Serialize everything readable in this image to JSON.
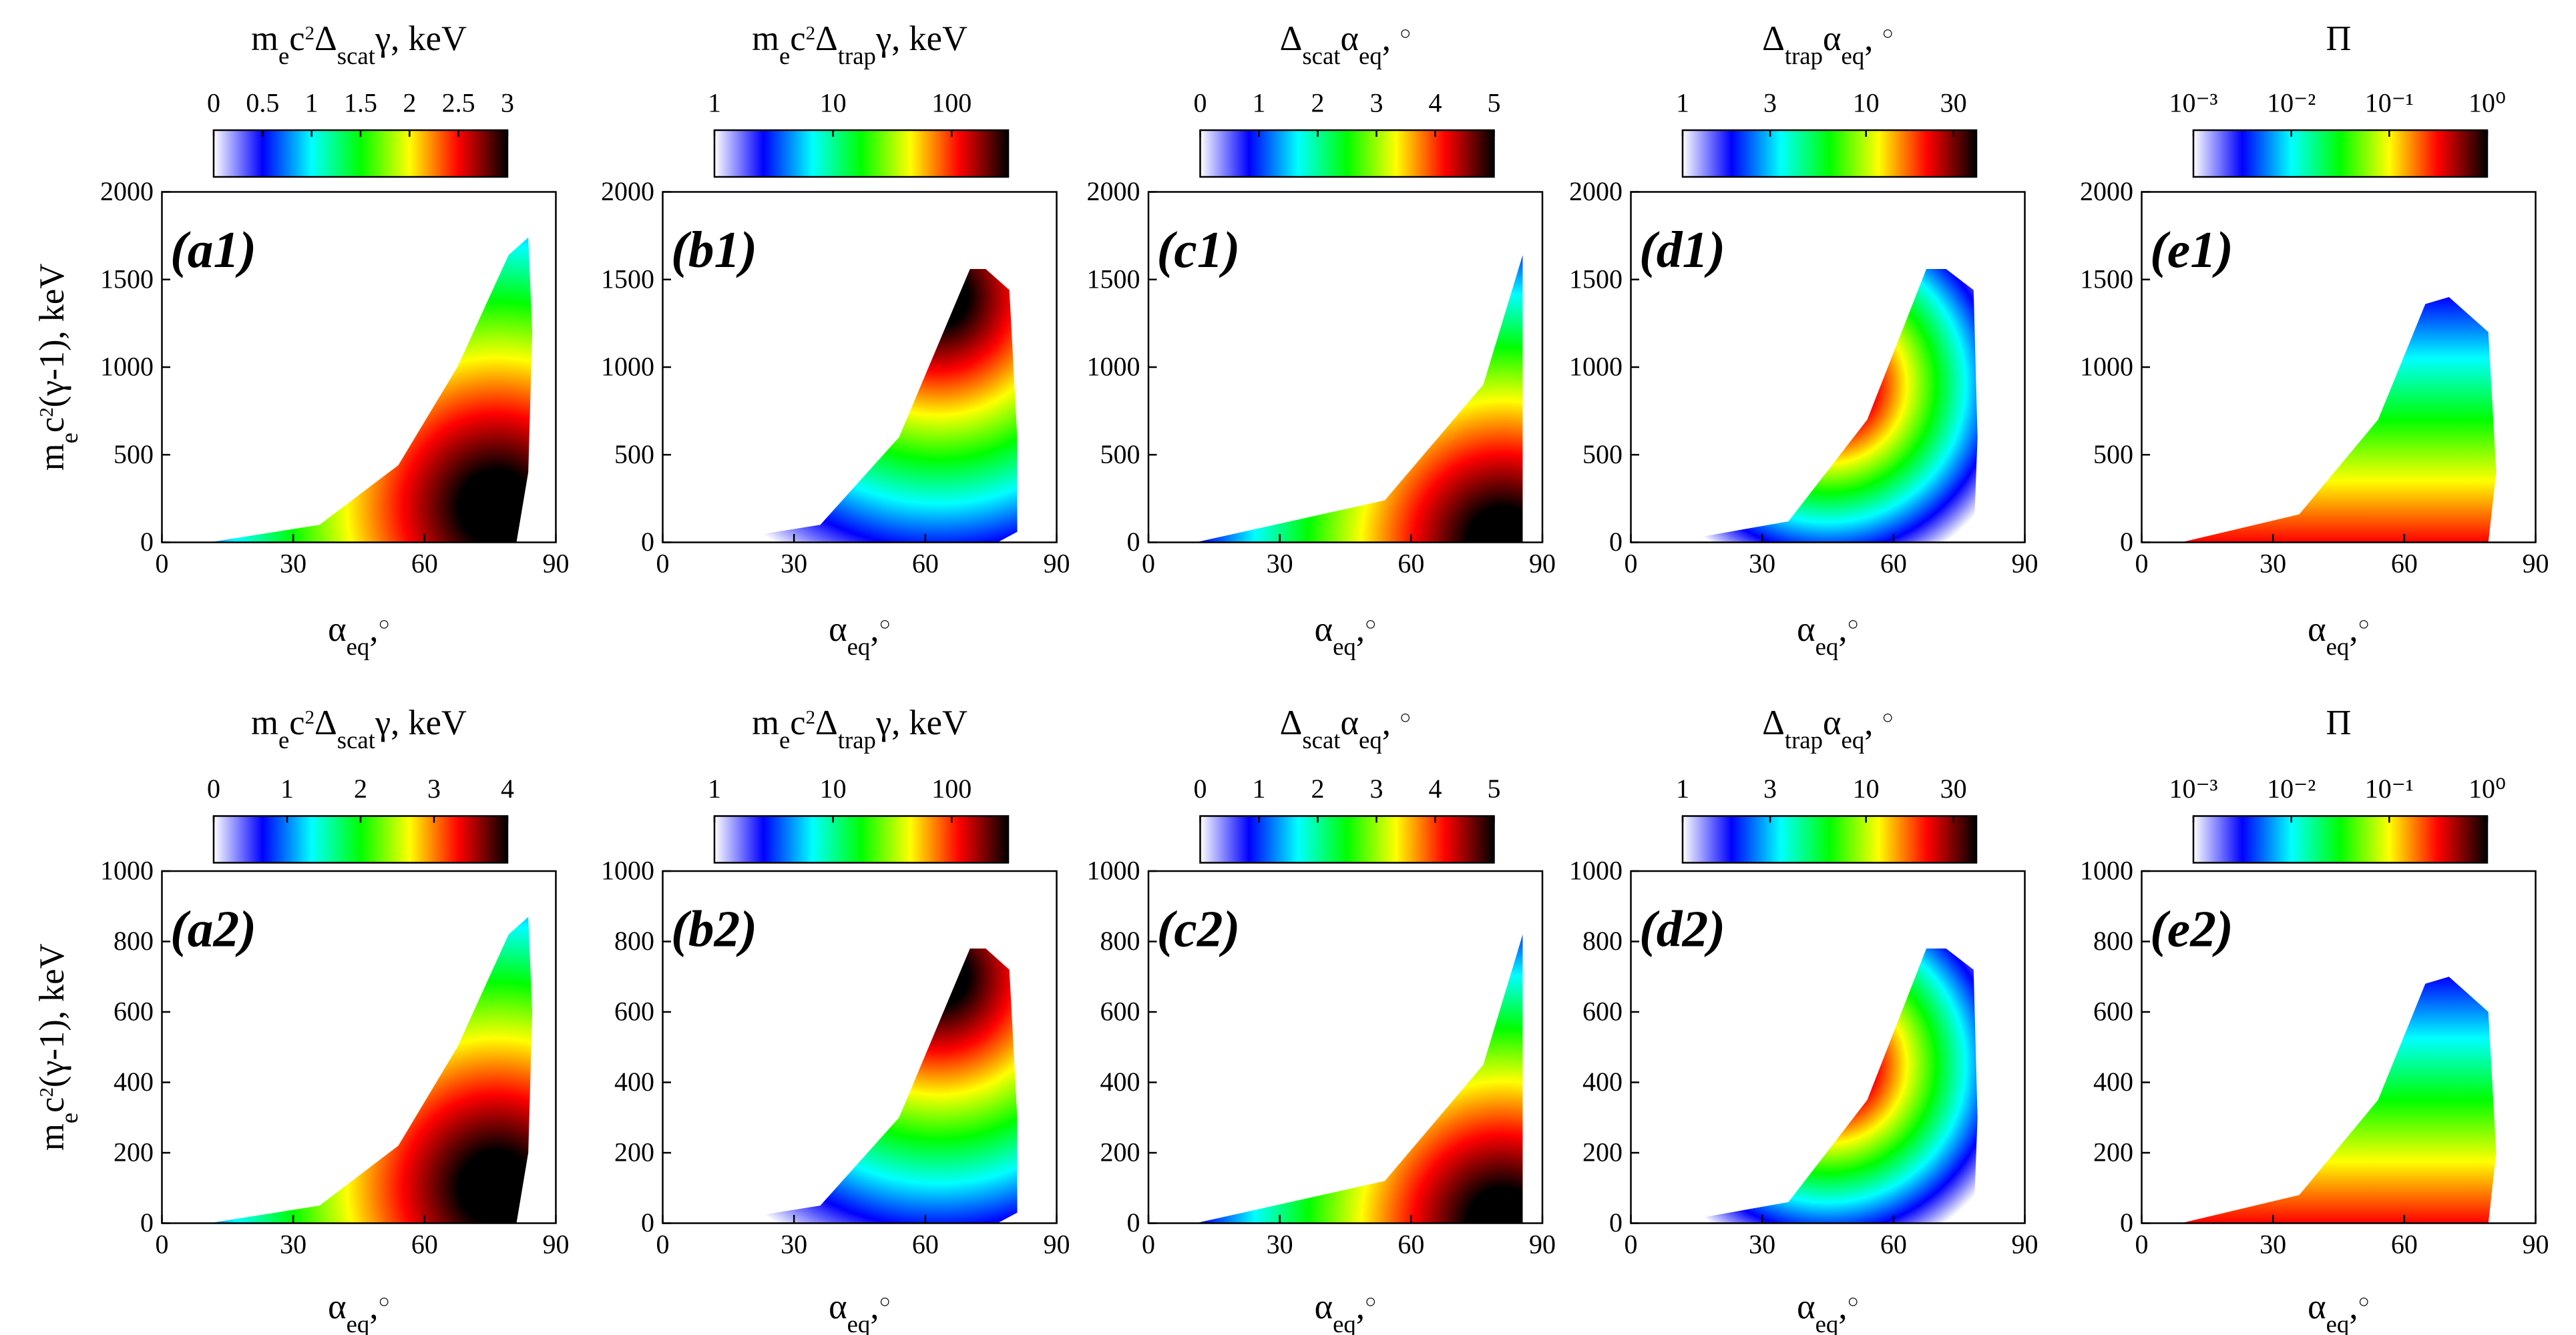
{
  "chart_data": [
    {
      "type": "heatmap",
      "panel_label": "(a1)",
      "colorbar_title": [
        {
          "text": "m"
        },
        {
          "text": "e",
          "shift": "sub"
        },
        {
          "text": "c"
        },
        {
          "text": "2",
          "shift": "super"
        },
        {
          "text": "Δ"
        },
        {
          "text": "scat",
          "shift": "sub"
        },
        {
          "text": "γ, keV"
        }
      ],
      "clim": [
        0,
        3
      ],
      "cticks": [
        0,
        0.5,
        1,
        1.5,
        2,
        2.5,
        3
      ],
      "cscale": "linear",
      "colormap": [
        "#ffffff",
        "#0000ff",
        "#00ffff",
        "#00ff00",
        "#ffff00",
        "#ff0000",
        "#000000"
      ],
      "xlabel": [
        {
          "text": "α"
        },
        {
          "text": "eq",
          "shift": "sub"
        },
        {
          "text": ","
        },
        {
          "text": "○",
          "shift": "super"
        }
      ],
      "ylabel": [
        {
          "text": "m"
        },
        {
          "text": "e",
          "shift": "sub"
        },
        {
          "text": "c"
        },
        {
          "text": "2",
          "shift": "super"
        },
        {
          "text": "(γ-1), keV"
        }
      ],
      "xlim": [
        0,
        90
      ],
      "xticks": [
        0,
        30,
        60,
        90
      ],
      "ylim": [
        0,
        2000
      ],
      "yticks": [
        0,
        500,
        1000,
        1500,
        2000
      ]
    },
    {
      "type": "heatmap",
      "panel_label": "(b1)",
      "colorbar_title": [
        {
          "text": "m"
        },
        {
          "text": "e",
          "shift": "sub"
        },
        {
          "text": "c"
        },
        {
          "text": "2",
          "shift": "super"
        },
        {
          "text": "Δ"
        },
        {
          "text": "trap",
          "shift": "sub"
        },
        {
          "text": "γ, keV"
        }
      ],
      "clim": [
        1,
        300
      ],
      "cticks": [
        1,
        10,
        100
      ],
      "cscale": "log",
      "colormap": [
        "#ffffff",
        "#0000ff",
        "#00ffff",
        "#00ff00",
        "#ffff00",
        "#ff0000",
        "#000000"
      ],
      "xlabel": [
        {
          "text": "α"
        },
        {
          "text": "eq",
          "shift": "sub"
        },
        {
          "text": ","
        },
        {
          "text": "○",
          "shift": "super"
        }
      ],
      "xlim": [
        0,
        90
      ],
      "xticks": [
        0,
        30,
        60,
        90
      ],
      "ylim": [
        0,
        2000
      ],
      "yticks": [
        0,
        500,
        1000,
        1500,
        2000
      ]
    },
    {
      "type": "heatmap",
      "panel_label": "(c1)",
      "colorbar_title": [
        {
          "text": "Δ"
        },
        {
          "text": "scat",
          "shift": "sub"
        },
        {
          "text": "α"
        },
        {
          "text": "eq",
          "shift": "sub"
        },
        {
          "text": ", "
        },
        {
          "text": "○",
          "shift": "super"
        }
      ],
      "clim": [
        0,
        5
      ],
      "cticks": [
        0,
        1,
        2,
        3,
        4,
        5
      ],
      "cscale": "linear",
      "colormap": [
        "#ffffff",
        "#0000ff",
        "#00ffff",
        "#00ff00",
        "#ffff00",
        "#ff0000",
        "#000000"
      ],
      "xlabel": [
        {
          "text": "α"
        },
        {
          "text": "eq",
          "shift": "sub"
        },
        {
          "text": ","
        },
        {
          "text": "○",
          "shift": "super"
        }
      ],
      "xlim": [
        0,
        90
      ],
      "xticks": [
        0,
        30,
        60,
        90
      ],
      "ylim": [
        0,
        2000
      ],
      "yticks": [
        0,
        500,
        1000,
        1500,
        2000
      ]
    },
    {
      "type": "heatmap",
      "panel_label": "(d1)",
      "colorbar_title": [
        {
          "text": "Δ"
        },
        {
          "text": "trap",
          "shift": "sub"
        },
        {
          "text": "α"
        },
        {
          "text": "eq",
          "shift": "sub"
        },
        {
          "text": ", "
        },
        {
          "text": "○",
          "shift": "super"
        }
      ],
      "clim": [
        1,
        40
      ],
      "cticks": [
        1,
        3,
        10,
        30
      ],
      "cscale": "log",
      "colormap": [
        "#ffffff",
        "#0000ff",
        "#00ffff",
        "#00ff00",
        "#ffff00",
        "#ff0000",
        "#000000"
      ],
      "xlabel": [
        {
          "text": "α"
        },
        {
          "text": "eq",
          "shift": "sub"
        },
        {
          "text": ","
        },
        {
          "text": "○",
          "shift": "super"
        }
      ],
      "xlim": [
        0,
        90
      ],
      "xticks": [
        0,
        30,
        60,
        90
      ],
      "ylim": [
        0,
        2000
      ],
      "yticks": [
        0,
        500,
        1000,
        1500,
        2000
      ]
    },
    {
      "type": "heatmap",
      "panel_label": "(e1)",
      "colorbar_title": [
        {
          "text": "Π"
        }
      ],
      "clim": [
        0.001,
        1
      ],
      "cticks": [
        {
          "value": 0.001,
          "label": "10⁻³"
        },
        {
          "value": 0.01,
          "label": "10⁻²"
        },
        {
          "value": 0.1,
          "label": "10⁻¹"
        },
        {
          "value": 1,
          "label": "10⁰"
        }
      ],
      "cscale": "log",
      "colormap": [
        "#ffffff",
        "#0000ff",
        "#00ffff",
        "#00ff00",
        "#ffff00",
        "#ff0000",
        "#000000"
      ],
      "xlabel": [
        {
          "text": "α"
        },
        {
          "text": "eq",
          "shift": "sub"
        },
        {
          "text": ","
        },
        {
          "text": "○",
          "shift": "super"
        }
      ],
      "xlim": [
        0,
        90
      ],
      "xticks": [
        0,
        30,
        60,
        90
      ],
      "ylim": [
        0,
        2000
      ],
      "yticks": [
        0,
        500,
        1000,
        1500,
        2000
      ]
    },
    {
      "type": "heatmap",
      "panel_label": "(a2)",
      "colorbar_title": [
        {
          "text": "m"
        },
        {
          "text": "e",
          "shift": "sub"
        },
        {
          "text": "c"
        },
        {
          "text": "2",
          "shift": "super"
        },
        {
          "text": "Δ"
        },
        {
          "text": "scat",
          "shift": "sub"
        },
        {
          "text": "γ, keV"
        }
      ],
      "clim": [
        0,
        4
      ],
      "cticks": [
        0,
        1,
        2,
        3,
        4
      ],
      "cscale": "linear",
      "colormap": [
        "#ffffff",
        "#0000ff",
        "#00ffff",
        "#00ff00",
        "#ffff00",
        "#ff0000",
        "#000000"
      ],
      "xlabel": [
        {
          "text": "α"
        },
        {
          "text": "eq",
          "shift": "sub"
        },
        {
          "text": ","
        },
        {
          "text": "○",
          "shift": "super"
        }
      ],
      "ylabel": [
        {
          "text": "m"
        },
        {
          "text": "e",
          "shift": "sub"
        },
        {
          "text": "c"
        },
        {
          "text": "2",
          "shift": "super"
        },
        {
          "text": "(γ-1), keV"
        }
      ],
      "xlim": [
        0,
        90
      ],
      "xticks": [
        0,
        30,
        60,
        90
      ],
      "ylim": [
        0,
        1000
      ],
      "yticks": [
        0,
        200,
        400,
        600,
        800,
        1000
      ]
    },
    {
      "type": "heatmap",
      "panel_label": "(b2)",
      "colorbar_title": [
        {
          "text": "m"
        },
        {
          "text": "e",
          "shift": "sub"
        },
        {
          "text": "c"
        },
        {
          "text": "2",
          "shift": "super"
        },
        {
          "text": "Δ"
        },
        {
          "text": "trap",
          "shift": "sub"
        },
        {
          "text": "γ, keV"
        }
      ],
      "clim": [
        1,
        300
      ],
      "cticks": [
        1,
        10,
        100
      ],
      "cscale": "log",
      "colormap": [
        "#ffffff",
        "#0000ff",
        "#00ffff",
        "#00ff00",
        "#ffff00",
        "#ff0000",
        "#000000"
      ],
      "xlabel": [
        {
          "text": "α"
        },
        {
          "text": "eq",
          "shift": "sub"
        },
        {
          "text": ","
        },
        {
          "text": "○",
          "shift": "super"
        }
      ],
      "xlim": [
        0,
        90
      ],
      "xticks": [
        0,
        30,
        60,
        90
      ],
      "ylim": [
        0,
        1000
      ],
      "yticks": [
        0,
        200,
        400,
        600,
        800,
        1000
      ]
    },
    {
      "type": "heatmap",
      "panel_label": "(c2)",
      "colorbar_title": [
        {
          "text": "Δ"
        },
        {
          "text": "scat",
          "shift": "sub"
        },
        {
          "text": "α"
        },
        {
          "text": "eq",
          "shift": "sub"
        },
        {
          "text": ", "
        },
        {
          "text": "○",
          "shift": "super"
        }
      ],
      "clim": [
        0,
        5
      ],
      "cticks": [
        0,
        1,
        2,
        3,
        4,
        5
      ],
      "cscale": "linear",
      "colormap": [
        "#ffffff",
        "#0000ff",
        "#00ffff",
        "#00ff00",
        "#ffff00",
        "#ff0000",
        "#000000"
      ],
      "xlabel": [
        {
          "text": "α"
        },
        {
          "text": "eq",
          "shift": "sub"
        },
        {
          "text": ","
        },
        {
          "text": "○",
          "shift": "super"
        }
      ],
      "xlim": [
        0,
        90
      ],
      "xticks": [
        0,
        30,
        60,
        90
      ],
      "ylim": [
        0,
        1000
      ],
      "yticks": [
        0,
        200,
        400,
        600,
        800,
        1000
      ]
    },
    {
      "type": "heatmap",
      "panel_label": "(d2)",
      "colorbar_title": [
        {
          "text": "Δ"
        },
        {
          "text": "trap",
          "shift": "sub"
        },
        {
          "text": "α"
        },
        {
          "text": "eq",
          "shift": "sub"
        },
        {
          "text": ", "
        },
        {
          "text": "○",
          "shift": "super"
        }
      ],
      "clim": [
        1,
        40
      ],
      "cticks": [
        1,
        3,
        10,
        30
      ],
      "cscale": "log",
      "colormap": [
        "#ffffff",
        "#0000ff",
        "#00ffff",
        "#00ff00",
        "#ffff00",
        "#ff0000",
        "#000000"
      ],
      "xlabel": [
        {
          "text": "α"
        },
        {
          "text": "eq",
          "shift": "sub"
        },
        {
          "text": ","
        },
        {
          "text": "○",
          "shift": "super"
        }
      ],
      "xlim": [
        0,
        90
      ],
      "xticks": [
        0,
        30,
        60,
        90
      ],
      "ylim": [
        0,
        1000
      ],
      "yticks": [
        0,
        200,
        400,
        600,
        800,
        1000
      ]
    },
    {
      "type": "heatmap",
      "panel_label": "(e2)",
      "colorbar_title": [
        {
          "text": "Π"
        }
      ],
      "clim": [
        0.001,
        1
      ],
      "cticks": [
        {
          "value": 0.001,
          "label": "10⁻³"
        },
        {
          "value": 0.01,
          "label": "10⁻²"
        },
        {
          "value": 0.1,
          "label": "10⁻¹"
        },
        {
          "value": 1,
          "label": "10⁰"
        }
      ],
      "cscale": "log",
      "colormap": [
        "#ffffff",
        "#0000ff",
        "#00ffff",
        "#00ff00",
        "#ffff00",
        "#ff0000",
        "#000000"
      ],
      "xlabel": [
        {
          "text": "α"
        },
        {
          "text": "eq",
          "shift": "sub"
        },
        {
          "text": ","
        },
        {
          "text": "○",
          "shift": "super"
        }
      ],
      "xlim": [
        0,
        90
      ],
      "xticks": [
        0,
        30,
        60,
        90
      ],
      "ylim": [
        0,
        1000
      ],
      "yticks": [
        0,
        200,
        400,
        600,
        800,
        1000
      ]
    }
  ]
}
